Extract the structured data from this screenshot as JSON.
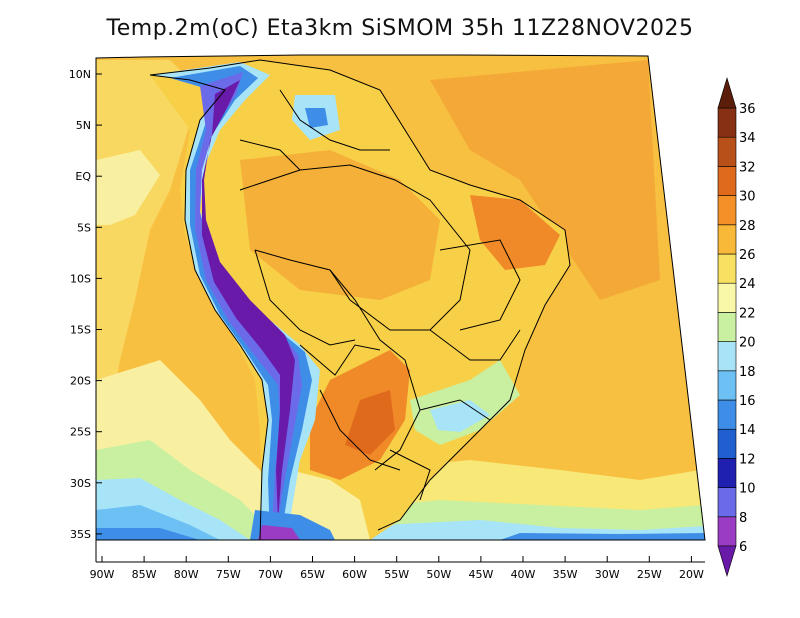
{
  "title": "Temp.2m(oC) Eta3km SiSMOM 35h 11Z28NOV2025",
  "map": {
    "variable": "2m temperature",
    "units": "oC",
    "lat_labels": [
      "10N",
      "5N",
      "EQ",
      "5S",
      "10S",
      "15S",
      "20S",
      "25S",
      "30S",
      "35S"
    ],
    "lat_values": [
      10,
      5,
      0,
      -5,
      -10,
      -15,
      -20,
      -25,
      -30,
      -35
    ],
    "lon_labels": [
      "90W",
      "85W",
      "80W",
      "75W",
      "70W",
      "65W",
      "60W",
      "55W",
      "50W",
      "45W",
      "40W",
      "35W",
      "30W",
      "25W",
      "20W"
    ],
    "lon_values": [
      -90,
      -85,
      -80,
      -75,
      -70,
      -65,
      -60,
      -55,
      -50,
      -45,
      -40,
      -35,
      -30,
      -25,
      -20
    ],
    "lat_range": [
      -38,
      12
    ],
    "lon_range": [
      -91,
      -20
    ]
  },
  "colorbar": {
    "levels": [
      "6",
      "8",
      "10",
      "12",
      "14",
      "16",
      "18",
      "20",
      "22",
      "24",
      "26",
      "28",
      "30",
      "32",
      "34",
      "36"
    ],
    "colors": [
      "#6a1aa8",
      "#9a3cc4",
      "#6b6bea",
      "#2020b0",
      "#1f5fd0",
      "#3e8ee8",
      "#6cc0f4",
      "#a8e4f8",
      "#c8f0a0",
      "#f8f8a8",
      "#f8e060",
      "#f8b838",
      "#f49028",
      "#e06a1c",
      "#b8501a",
      "#883014",
      "#5a1e0a"
    ]
  }
}
